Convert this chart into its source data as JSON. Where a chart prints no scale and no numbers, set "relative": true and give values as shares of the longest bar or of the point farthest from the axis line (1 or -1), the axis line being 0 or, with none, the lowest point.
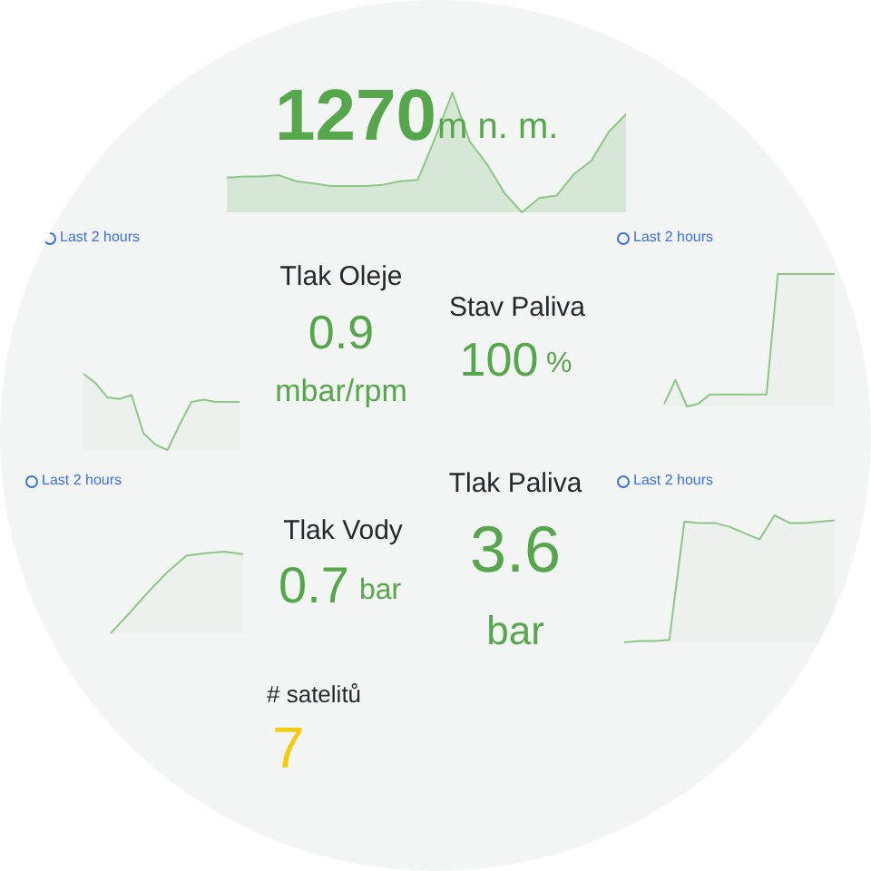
{
  "chart_data": [
    {
      "type": "area",
      "relative": true,
      "color": "#8cc786",
      "annotations": [
        "1270",
        "m n. m."
      ],
      "categories": [
        null,
        null,
        null,
        null,
        null,
        null,
        null,
        null,
        null,
        null,
        null,
        null,
        null,
        null,
        null,
        null,
        null,
        null,
        null,
        null,
        null,
        null,
        null,
        null
      ],
      "values": [
        0.29,
        0.3,
        0.3,
        0.31,
        0.26,
        0.24,
        0.22,
        0.22,
        0.22,
        0.23,
        0.26,
        0.27,
        0.62,
        1,
        0.59,
        0.4,
        0.16,
        0,
        0.12,
        0.14,
        0.32,
        0.43,
        0.67,
        0.82
      ]
    },
    {
      "type": "area",
      "relative": true,
      "color": "#8cc786",
      "annotations": [
        "Last 2 hours"
      ],
      "categories": [
        null,
        null,
        null,
        null,
        null,
        null,
        null,
        null,
        null,
        null,
        null,
        null,
        null,
        null
      ],
      "values": [
        1,
        0.88,
        0.69,
        0.67,
        0.72,
        0.22,
        0.07,
        0,
        0.33,
        0.63,
        0.66,
        0.63,
        0.63,
        0.63
      ]
    },
    {
      "type": "other",
      "color": "#56a64b",
      "title": "Tlak Oleje",
      "annotations": [
        "0.9",
        "mbar/rpm"
      ]
    },
    {
      "type": "area",
      "relative": true,
      "color": "#8cc786",
      "title": "Stav Paliva",
      "annotations": [
        "Last 2 hours",
        "100",
        "%"
      ],
      "categories": [
        null,
        null,
        null,
        null,
        null,
        null,
        null,
        null,
        null,
        null,
        null,
        null,
        null,
        null,
        null,
        null
      ],
      "values": [
        0.02,
        0.2,
        0,
        0.02,
        0.09,
        0.09,
        0.09,
        0.09,
        0.09,
        0.09,
        1,
        1,
        1,
        1,
        1,
        1
      ]
    },
    {
      "type": "area",
      "relative": true,
      "color": "#8cc786",
      "annotations": [
        "Last 2 hours"
      ],
      "categories": [
        null,
        null,
        null,
        null,
        null,
        null,
        null,
        null
      ],
      "values": [
        0,
        0.25,
        0.51,
        0.75,
        0.95,
        0.98,
        1,
        0.97
      ]
    },
    {
      "type": "other",
      "color": "#56a64b",
      "title": "Tlak Vody",
      "annotations": [
        "0.7",
        "bar"
      ]
    },
    {
      "type": "area",
      "relative": true,
      "color": "#8cc786",
      "title": "Tlak Paliva",
      "annotations": [
        "Last 2 hours",
        "3.6",
        "bar"
      ],
      "categories": [
        null,
        null,
        null,
        null,
        null,
        null,
        null,
        null,
        null,
        null,
        null,
        null,
        null,
        null,
        null
      ],
      "values": [
        0,
        0.01,
        0.01,
        0.02,
        0.95,
        0.94,
        0.94,
        0.91,
        0.86,
        0.81,
        1,
        0.94,
        0.94,
        0.95,
        0.96
      ]
    },
    {
      "type": "other",
      "color": "#f2cc0c",
      "title": "# satelitů",
      "annotations": [
        "7"
      ]
    }
  ]
}
